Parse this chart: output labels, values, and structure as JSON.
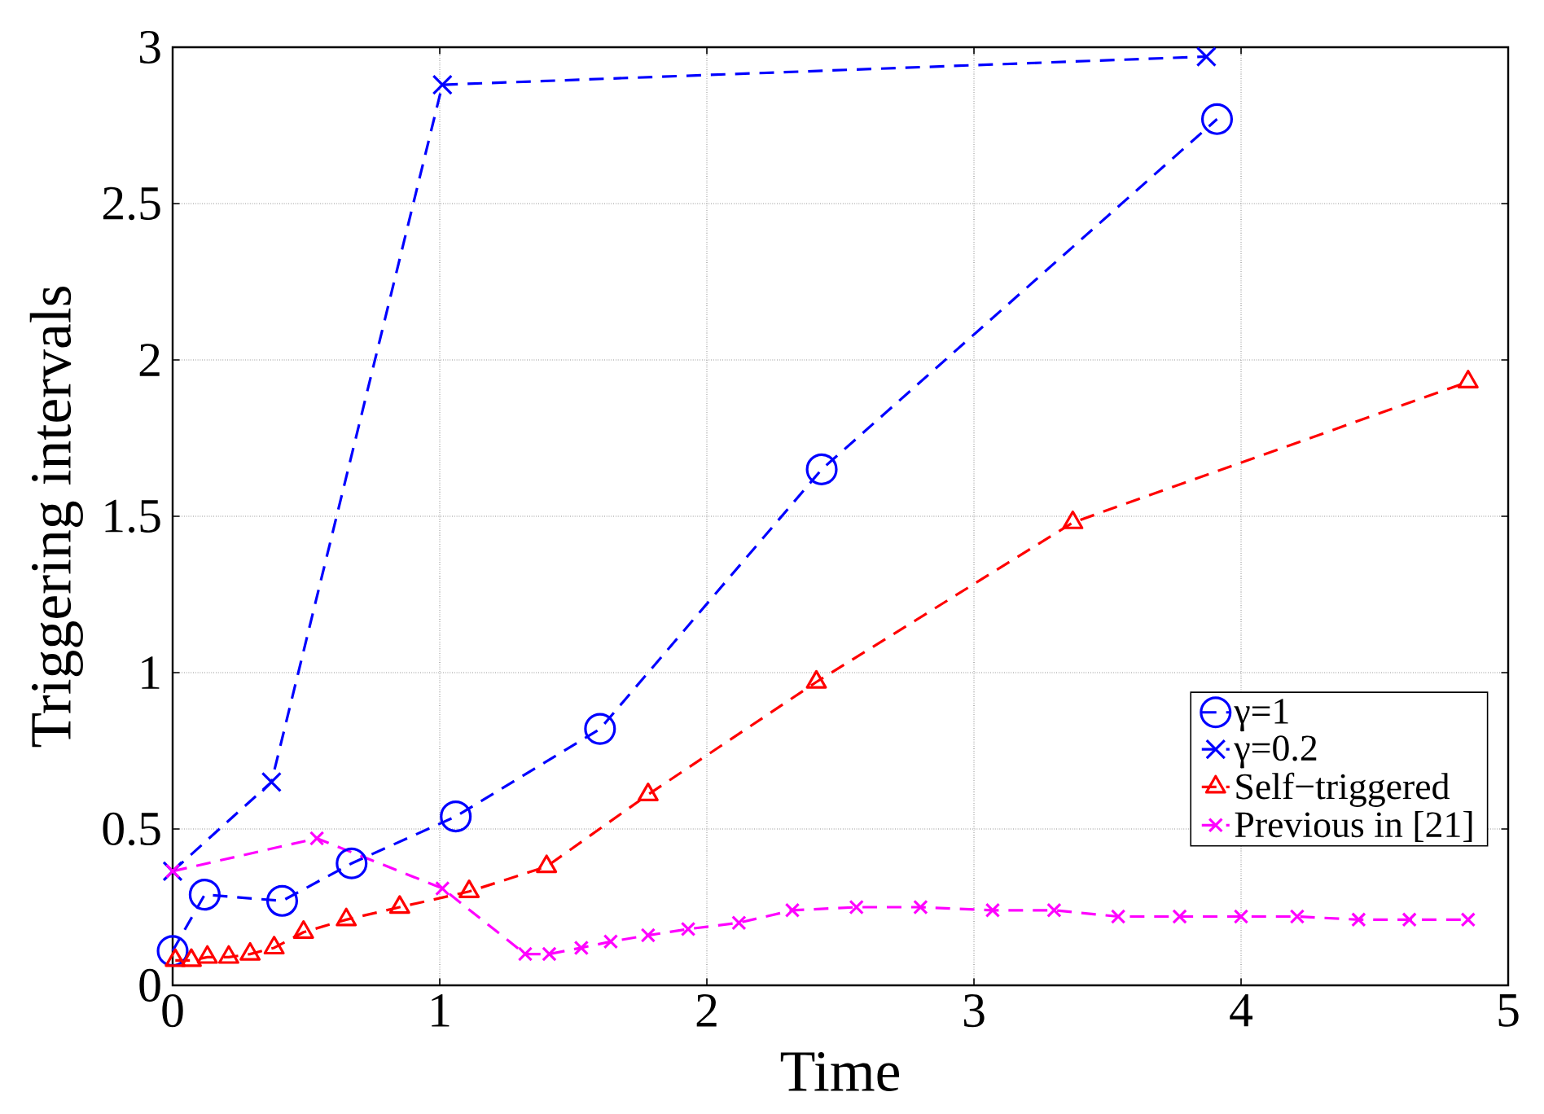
{
  "chart_data": {
    "type": "line",
    "xlabel": "Time",
    "ylabel": "Triggering intervals",
    "xlim": [
      0,
      5
    ],
    "ylim": [
      0,
      3
    ],
    "xticks": [
      0,
      1,
      2,
      3,
      4,
      5
    ],
    "yticks": [
      0,
      0.5,
      1,
      1.5,
      2,
      2.5,
      3
    ],
    "grid": true,
    "legend": "right",
    "line_style": "dashed",
    "series": [
      {
        "name": "γ=1",
        "color": "#0000ff",
        "marker": "circle",
        "x": [
          0,
          0.12,
          0.41,
          0.67,
          1.06,
          1.6,
          2.43,
          3.91
        ],
        "values": [
          0.11,
          0.29,
          0.27,
          0.39,
          0.54,
          0.82,
          1.65,
          2.77
        ]
      },
      {
        "name": "γ=0.2",
        "color": "#0000ff",
        "marker": "cross",
        "x": [
          0,
          0.37,
          1.01,
          3.87
        ],
        "values": [
          0.365,
          0.65,
          2.88,
          2.97
        ]
      },
      {
        "name": "Self−triggered",
        "color": "#ff0000",
        "marker": "triangle",
        "x": [
          0.01,
          0.07,
          0.13,
          0.21,
          0.29,
          0.38,
          0.49,
          0.65,
          0.85,
          1.11,
          1.4,
          1.78,
          2.41,
          3.37,
          4.85
        ],
        "values": [
          0.08,
          0.08,
          0.09,
          0.09,
          0.1,
          0.12,
          0.17,
          0.21,
          0.25,
          0.3,
          0.38,
          0.61,
          0.97,
          1.48,
          1.93
        ]
      },
      {
        "name": "Previous in [21]",
        "color": "#ff00ff",
        "marker": "cross",
        "x": [
          0,
          0.54,
          1.01,
          1.32,
          1.41,
          1.53,
          1.64,
          1.78,
          1.93,
          2.12,
          2.32,
          2.56,
          2.8,
          3.07,
          3.3,
          3.54,
          3.77,
          4.0,
          4.21,
          4.44,
          4.63,
          4.85
        ],
        "values": [
          0.365,
          0.47,
          0.31,
          0.1,
          0.1,
          0.12,
          0.14,
          0.16,
          0.18,
          0.2,
          0.24,
          0.25,
          0.25,
          0.24,
          0.24,
          0.22,
          0.22,
          0.22,
          0.22,
          0.21,
          0.21,
          0.21
        ]
      }
    ]
  }
}
